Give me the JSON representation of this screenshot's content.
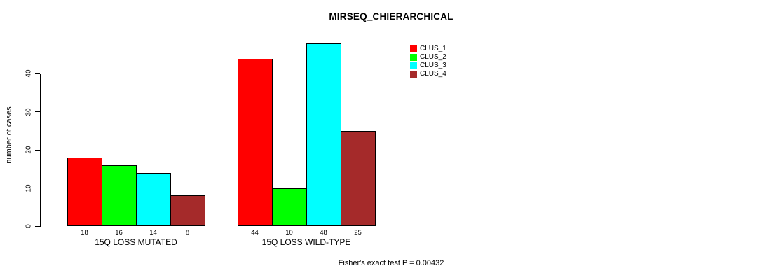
{
  "title": "MIRSEQ_CHIERARCHICAL",
  "footer": "Fisher's exact test P = 0.00432",
  "chart_data": {
    "type": "bar",
    "title": "MIRSEQ_CHIERARCHICAL",
    "ylabel": "number of cases",
    "xlabel": "",
    "ylim": [
      0,
      48
    ],
    "yticks": [
      0,
      10,
      20,
      30,
      40
    ],
    "grid": false,
    "legend_position": "top-right",
    "bar_borders_color": "#000000",
    "categories": [
      "15Q LOSS MUTATED",
      "15Q LOSS WILD-TYPE"
    ],
    "series": [
      {
        "name": "CLUS_1",
        "color": "#FF0000",
        "values": [
          18,
          44
        ]
      },
      {
        "name": "CLUS_2",
        "color": "#00FF00",
        "values": [
          16,
          10
        ]
      },
      {
        "name": "CLUS_3",
        "color": "#00FFFF",
        "values": [
          14,
          48
        ]
      },
      {
        "name": "CLUS_4",
        "color": "#A52A2A",
        "values": [
          8,
          25
        ]
      }
    ],
    "bar_value_labels": [
      [
        18,
        16,
        14,
        8
      ],
      [
        44,
        10,
        48,
        25
      ]
    ],
    "annotation": "Fisher's exact test P = 0.00432"
  }
}
